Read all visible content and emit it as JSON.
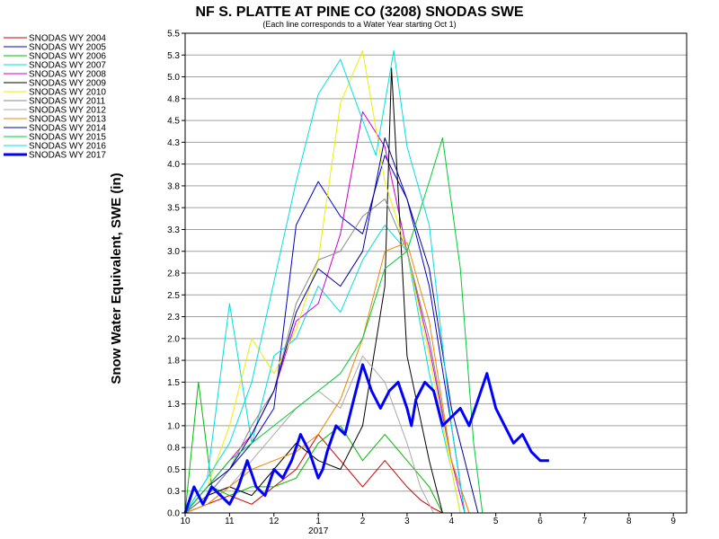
{
  "chart_data": {
    "type": "line",
    "title": "NF S. PLATTE AT PINE CO (3208) SNODAS SWE",
    "subtitle": "(Each line corresponds to a Water Year starting Oct 1)",
    "ylabel": "Snow Water Equivalent, SWE (in)",
    "xlabel": "",
    "x_tick_labels": [
      "10",
      "11",
      "12",
      "1",
      "2",
      "3",
      "4",
      "5",
      "6",
      "7",
      "8",
      "9"
    ],
    "x_sub_label": "2017",
    "x_range": [
      0,
      11.3
    ],
    "y_tick_labels": [
      "0.0",
      "0.3",
      "0.5",
      "0.8",
      "1.0",
      "1.3",
      "1.5",
      "1.8",
      "2.0",
      "2.3",
      "2.5",
      "2.8",
      "3.0",
      "3.3",
      "3.5",
      "3.8",
      "4.0",
      "4.3",
      "4.5",
      "4.8",
      "5.0",
      "5.3",
      "5.5"
    ],
    "ylim": [
      0,
      5.5
    ],
    "grid": true,
    "legend_position": "left",
    "series": [
      {
        "name": "SNODAS WY 2004",
        "color": "#cc0000",
        "width": 1,
        "x": [
          0,
          0.5,
          1,
          1.5,
          2,
          2.5,
          3,
          3.5,
          4,
          4.5,
          5,
          5.3,
          5.6,
          5.8
        ],
        "y": [
          0,
          0.1,
          0.2,
          0.1,
          0.3,
          0.5,
          0.9,
          0.6,
          0.3,
          0.6,
          0.3,
          0.15,
          0.05,
          0
        ]
      },
      {
        "name": "SNODAS WY 2005",
        "color": "#0000cc",
        "width": 1,
        "x": [
          0,
          0.5,
          1,
          1.5,
          2,
          2.5,
          3,
          3.5,
          4,
          4.5,
          5,
          5.5,
          6,
          6.3
        ],
        "y": [
          0,
          0.2,
          0.5,
          0.8,
          1.2,
          3.3,
          3.8,
          3.4,
          3.2,
          4.1,
          3.6,
          2.6,
          1.0,
          0
        ]
      },
      {
        "name": "SNODAS WY 2006",
        "color": "#00bb00",
        "width": 1,
        "x": [
          0,
          0.3,
          0.6,
          1,
          1.5,
          2,
          2.5,
          3,
          3.5,
          4,
          4.5,
          5,
          5.5,
          5.8
        ],
        "y": [
          0,
          1.5,
          0.3,
          0.2,
          0.3,
          0.3,
          0.4,
          0.8,
          1.0,
          0.6,
          0.9,
          0.6,
          0.3,
          0
        ]
      },
      {
        "name": "SNODAS WY 2007",
        "color": "#00dddd",
        "width": 1,
        "x": [
          0,
          0.5,
          1,
          1.5,
          2,
          2.5,
          3,
          3.5,
          4,
          4.5,
          5,
          5.5,
          6,
          6.2
        ],
        "y": [
          0,
          0.4,
          2.4,
          0.8,
          1.8,
          2.0,
          2.6,
          2.3,
          2.9,
          3.3,
          3.0,
          1.6,
          0.5,
          0
        ]
      },
      {
        "name": "SNODAS WY 2008",
        "color": "#cc00cc",
        "width": 1,
        "x": [
          0,
          0.5,
          1,
          1.5,
          2,
          2.5,
          3,
          3.5,
          4,
          4.5,
          5,
          5.5,
          6,
          6.3
        ],
        "y": [
          0,
          0.3,
          0.6,
          0.9,
          1.4,
          2.2,
          2.4,
          3.2,
          4.6,
          4.2,
          3.0,
          1.9,
          0.6,
          0
        ]
      },
      {
        "name": "SNODAS WY 2009",
        "color": "#000000",
        "width": 1,
        "x": [
          0,
          0.5,
          1,
          1.5,
          2,
          2.5,
          3,
          3.5,
          4,
          4.5,
          4.65,
          5,
          5.5,
          5.8
        ],
        "y": [
          0,
          0.2,
          0.3,
          0.2,
          0.5,
          0.8,
          0.6,
          0.5,
          1.0,
          2.6,
          5.1,
          1.8,
          0.6,
          0
        ]
      },
      {
        "name": "SNODAS WY 2010",
        "color": "#eeee00",
        "width": 1,
        "x": [
          0,
          0.5,
          1,
          1.5,
          2,
          2.5,
          3,
          3.5,
          4,
          4.5,
          5,
          5.5,
          6,
          6.2
        ],
        "y": [
          0,
          0.3,
          1.0,
          2.0,
          1.6,
          2.1,
          2.9,
          4.7,
          5.3,
          3.8,
          3.0,
          1.8,
          0.5,
          0
        ]
      },
      {
        "name": "SNODAS WY 2011",
        "color": "#888888",
        "width": 1,
        "x": [
          0,
          0.5,
          1,
          1.5,
          2,
          2.5,
          3,
          3.5,
          4,
          4.5,
          5,
          5.5,
          6,
          6.4
        ],
        "y": [
          0,
          0.2,
          0.5,
          1.0,
          1.4,
          2.4,
          2.9,
          3.0,
          3.4,
          3.6,
          3.0,
          2.0,
          0.6,
          0
        ]
      },
      {
        "name": "SNODAS WY 2012",
        "color": "#aaaaaa",
        "width": 1,
        "x": [
          0,
          0.5,
          1,
          1.5,
          2,
          2.5,
          3,
          3.5,
          4,
          4.5,
          5,
          5.3,
          5.6
        ],
        "y": [
          0,
          0.1,
          0.3,
          0.6,
          0.9,
          1.2,
          1.4,
          1.2,
          1.8,
          1.5,
          0.8,
          0.3,
          0
        ]
      },
      {
        "name": "SNODAS WY 2013",
        "color": "#ee8800",
        "width": 1,
        "x": [
          0,
          0.5,
          1,
          1.5,
          2,
          2.5,
          3,
          3.5,
          4,
          4.5,
          5,
          5.5,
          6,
          6.4
        ],
        "y": [
          0,
          0.1,
          0.3,
          0.5,
          0.6,
          0.7,
          0.9,
          1.3,
          2.0,
          3.0,
          3.1,
          2.2,
          0.6,
          0
        ]
      },
      {
        "name": "SNODAS WY 2014",
        "color": "#000099",
        "width": 1,
        "x": [
          0,
          0.5,
          1,
          1.5,
          2,
          2.5,
          3,
          3.5,
          4,
          4.5,
          5,
          5.5,
          6,
          6.6
        ],
        "y": [
          0,
          0.3,
          0.5,
          0.9,
          1.4,
          2.3,
          2.8,
          2.6,
          3.0,
          4.3,
          3.6,
          2.8,
          1.2,
          0
        ]
      },
      {
        "name": "SNODAS WY 2015",
        "color": "#00cc33",
        "width": 1,
        "x": [
          0,
          0.5,
          1,
          1.5,
          2,
          2.5,
          3,
          3.5,
          4,
          4.5,
          5,
          5.5,
          5.8,
          6.2,
          6.5,
          6.7
        ],
        "y": [
          0,
          0.3,
          0.6,
          0.8,
          1.0,
          1.2,
          1.4,
          1.6,
          2.0,
          2.8,
          3.0,
          3.8,
          4.3,
          2.8,
          0.8,
          0
        ]
      },
      {
        "name": "SNODAS WY 2016",
        "color": "#00e0e0",
        "width": 1,
        "x": [
          0,
          0.5,
          1,
          1.5,
          2.5,
          3,
          3.5,
          4,
          4.3,
          4.7,
          5,
          5.5,
          6,
          6.3
        ],
        "y": [
          0,
          0.4,
          0.8,
          1.5,
          3.8,
          4.8,
          5.2,
          4.5,
          4.1,
          5.3,
          4.2,
          3.3,
          1.0,
          0
        ]
      },
      {
        "name": "SNODAS WY 2017",
        "color": "#0000ff",
        "width": 3,
        "x": [
          0,
          0.2,
          0.4,
          0.6,
          0.8,
          1.0,
          1.2,
          1.4,
          1.6,
          1.8,
          2.0,
          2.2,
          2.4,
          2.6,
          2.8,
          3.0,
          3.1,
          3.2,
          3.4,
          3.6,
          3.8,
          4.0,
          4.2,
          4.4,
          4.6,
          4.8,
          5.0,
          5.1,
          5.2,
          5.4,
          5.6,
          5.8,
          6.0,
          6.2,
          6.4,
          6.6,
          6.8,
          7.0,
          7.2,
          7.4,
          7.6,
          7.8,
          8.0,
          8.2
        ],
        "y": [
          0,
          0.3,
          0.1,
          0.3,
          0.2,
          0.1,
          0.3,
          0.6,
          0.3,
          0.2,
          0.5,
          0.4,
          0.6,
          0.9,
          0.7,
          0.4,
          0.5,
          0.7,
          1.0,
          0.9,
          1.3,
          1.7,
          1.4,
          1.2,
          1.4,
          1.5,
          1.2,
          1.0,
          1.3,
          1.5,
          1.4,
          1.0,
          1.1,
          1.2,
          1.0,
          1.3,
          1.6,
          1.2,
          1.0,
          0.8,
          0.9,
          0.7,
          0.6,
          0.6
        ]
      }
    ]
  }
}
